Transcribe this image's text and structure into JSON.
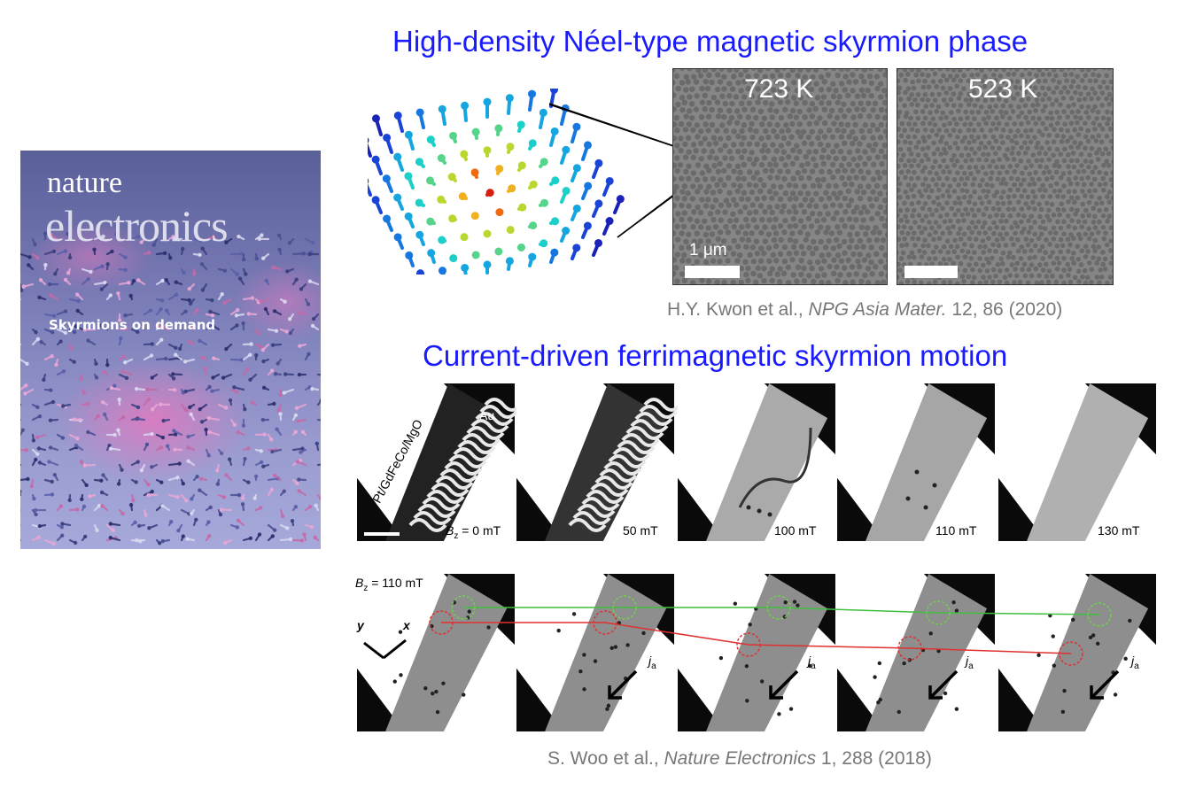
{
  "cover": {
    "brand_top": "nature",
    "brand_main": "electronics",
    "headline": "Skyrmions on demand"
  },
  "top_section": {
    "title": "High-density Néel-type magnetic skyrmion phase",
    "panels": [
      {
        "temperature": "723 K"
      },
      {
        "temperature": "523 K"
      }
    ],
    "scale_label": "1 μm",
    "citation": {
      "authors": "H.Y. Kwon et al., ",
      "journal": "NPG Asia Mater.",
      "details": " 12, 86 (2020)"
    }
  },
  "bottom_section": {
    "title": "Current-driven ferrimagnetic skyrmion motion",
    "row1": {
      "stack_label": "Pt/GdFeCo/MgO",
      "electrode_label": "Au",
      "field_prefix": "B",
      "field_sub": "z",
      "field_first": " = 0 mT",
      "fields": [
        "50 mT",
        "100 mT",
        "110 mT",
        "130 mT"
      ]
    },
    "row2": {
      "field_prefix": "B",
      "field_sub": "z",
      "field_value": " = 110 mT",
      "axis_y": "y",
      "axis_x": "x",
      "current_symbol": "j",
      "current_sub": "a"
    },
    "citation": {
      "authors": "S. Woo et al., ",
      "journal": "Nature Electronics",
      "details": " 1, 288 (2018)"
    }
  }
}
